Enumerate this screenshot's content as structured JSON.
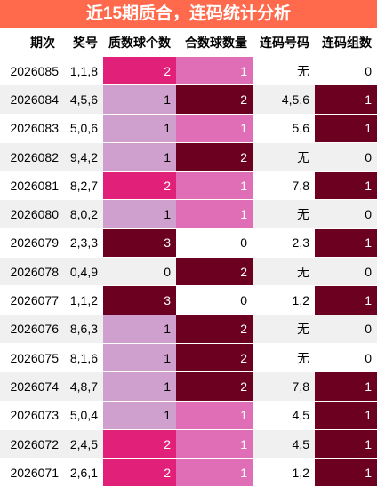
{
  "title": "近15期质合，连码统计分析",
  "headers": [
    "期次",
    "奖号",
    "质数球个数",
    "合数球数量",
    "连码号码",
    "连码组数"
  ],
  "rows": [
    [
      "2026085",
      "1,1,8",
      "2",
      "1",
      "无",
      "0"
    ],
    [
      "2026084",
      "4,5,6",
      "1",
      "2",
      "4,5,6",
      "1"
    ],
    [
      "2026083",
      "5,0,6",
      "1",
      "1",
      "5,6",
      "1"
    ],
    [
      "2026082",
      "9,4,2",
      "1",
      "2",
      "无",
      "0"
    ],
    [
      "2026081",
      "8,2,7",
      "2",
      "1",
      "7,8",
      "1"
    ],
    [
      "2026080",
      "8,0,2",
      "1",
      "1",
      "无",
      "0"
    ],
    [
      "2026079",
      "2,3,3",
      "3",
      "0",
      "2,3",
      "1"
    ],
    [
      "2026078",
      "0,4,9",
      "0",
      "2",
      "无",
      "0"
    ],
    [
      "2026077",
      "1,1,2",
      "3",
      "0",
      "1,2",
      "1"
    ],
    [
      "2026076",
      "8,6,3",
      "1",
      "2",
      "无",
      "0"
    ],
    [
      "2026075",
      "8,1,6",
      "1",
      "2",
      "无",
      "0"
    ],
    [
      "2026074",
      "4,8,7",
      "1",
      "2",
      "7,8",
      "1"
    ],
    [
      "2026073",
      "5,0,4",
      "1",
      "1",
      "4,5",
      "1"
    ],
    [
      "2026072",
      "2,4,5",
      "2",
      "1",
      "4,5",
      "1"
    ],
    [
      "2026071",
      "2,6,1",
      "2",
      "1",
      "1,2",
      "1"
    ]
  ],
  "colors": {
    "title_bg": "#ff6a4d",
    "prime_by_value": {
      "0": "#ffffff",
      "1": "#cf9fce",
      "2": "#e1207a",
      "3": "#6b0020"
    },
    "composite_by_value": {
      "0": "#ffffff",
      "1": "#e06eb6",
      "2": "#6b0020"
    },
    "group_by_value": {
      "0": "#ffffff",
      "1": "#6b0020"
    }
  }
}
